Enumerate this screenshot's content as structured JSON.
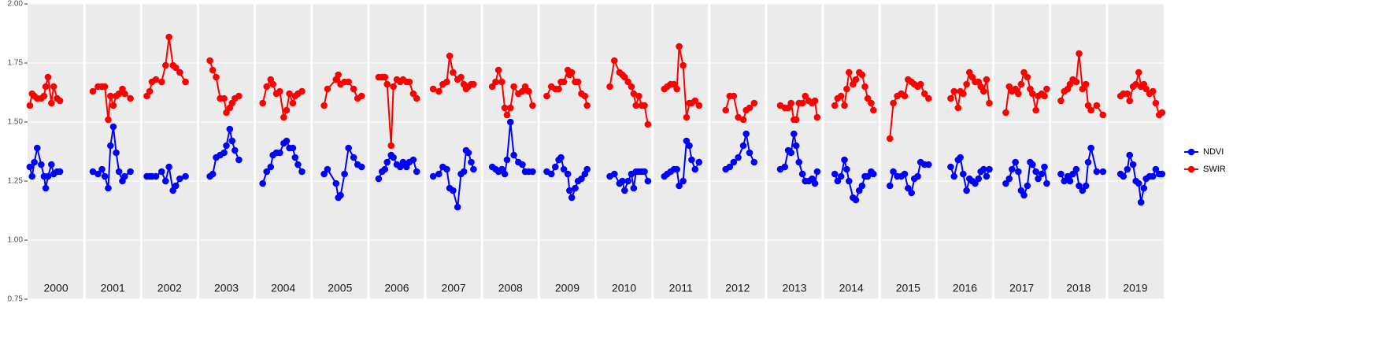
{
  "chart_data": {
    "type": "line",
    "x": [
      2000.04,
      2000.08,
      2000.12,
      2000.17,
      2000.24,
      2000.29,
      2000.32,
      2000.36,
      2000.42,
      2000.46,
      2000.52,
      2000.57,
      2001.15,
      2001.24,
      2001.31,
      2001.36,
      2001.42,
      2001.46,
      2001.51,
      2001.56,
      2001.61,
      2001.67,
      2001.71,
      2001.81,
      2002.1,
      2002.15,
      2002.19,
      2002.26,
      2002.36,
      2002.43,
      2002.49,
      2002.56,
      2002.61,
      2002.68,
      2002.78,
      2003.21,
      2003.26,
      2003.32,
      2003.39,
      2003.46,
      2003.5,
      2003.56,
      2003.6,
      2003.65,
      2003.72,
      2004.14,
      2004.21,
      2004.28,
      2004.32,
      2004.38,
      2004.44,
      2004.51,
      2004.56,
      2004.61,
      2004.67,
      2004.71,
      2004.76,
      2004.83,
      2005.22,
      2005.28,
      2005.43,
      2005.47,
      2005.51,
      2005.58,
      2005.65,
      2005.74,
      2005.81,
      2005.88,
      2006.18,
      2006.24,
      2006.29,
      2006.33,
      2006.4,
      2006.44,
      2006.5,
      2006.56,
      2006.61,
      2006.67,
      2006.72,
      2006.79,
      2006.85,
      2007.14,
      2007.24,
      2007.31,
      2007.38,
      2007.43,
      2007.49,
      2007.57,
      2007.63,
      2007.68,
      2007.72,
      2007.76,
      2007.81,
      2007.85,
      2008.18,
      2008.24,
      2008.29,
      2008.35,
      2008.4,
      2008.44,
      2008.5,
      2008.56,
      2008.64,
      2008.71,
      2008.76,
      2008.82,
      2008.89,
      2009.14,
      2009.22,
      2009.29,
      2009.35,
      2009.39,
      2009.44,
      2009.51,
      2009.54,
      2009.58,
      2009.64,
      2009.69,
      2009.75,
      2009.81,
      2009.85,
      2010.25,
      2010.33,
      2010.42,
      2010.47,
      2010.51,
      2010.57,
      2010.63,
      2010.67,
      2010.71,
      2010.76,
      2010.81,
      2010.86,
      2010.92,
      2011.21,
      2011.26,
      2011.32,
      2011.38,
      2011.43,
      2011.47,
      2011.54,
      2011.6,
      2011.65,
      2011.69,
      2011.75,
      2011.82,
      2012.29,
      2012.36,
      2012.43,
      2012.51,
      2012.6,
      2012.65,
      2012.71,
      2012.79,
      2013.25,
      2013.33,
      2013.39,
      2013.44,
      2013.49,
      2013.53,
      2013.58,
      2013.64,
      2013.69,
      2013.75,
      2013.81,
      2013.86,
      2013.9,
      2014.21,
      2014.26,
      2014.32,
      2014.38,
      2014.42,
      2014.46,
      2014.53,
      2014.58,
      2014.64,
      2014.69,
      2014.74,
      2014.79,
      2014.85,
      2014.89,
      2015.18,
      2015.24,
      2015.31,
      2015.38,
      2015.44,
      2015.5,
      2015.56,
      2015.61,
      2015.67,
      2015.72,
      2015.79,
      2015.86,
      2016.25,
      2016.31,
      2016.38,
      2016.42,
      2016.47,
      2016.53,
      2016.58,
      2016.63,
      2016.68,
      2016.74,
      2016.78,
      2016.83,
      2016.88,
      2016.93,
      2017.22,
      2017.28,
      2017.33,
      2017.39,
      2017.44,
      2017.49,
      2017.54,
      2017.6,
      2017.65,
      2017.69,
      2017.75,
      2017.79,
      2017.85,
      2017.9,
      2017.94,
      2018.19,
      2018.25,
      2018.31,
      2018.35,
      2018.4,
      2018.46,
      2018.51,
      2018.57,
      2018.63,
      2018.67,
      2018.72,
      2018.82,
      2018.93,
      2019.24,
      2019.29,
      2019.36,
      2019.4,
      2019.46,
      2019.51,
      2019.56,
      2019.6,
      2019.65,
      2019.69,
      2019.75,
      2019.81,
      2019.86,
      2019.92,
      2019.97
    ],
    "series": [
      {
        "name": "NDVI",
        "color": "#0000ff",
        "values": [
          1.31,
          1.27,
          1.33,
          1.39,
          1.32,
          1.27,
          1.22,
          1.27,
          1.32,
          1.28,
          1.29,
          1.29,
          1.29,
          1.28,
          1.3,
          1.27,
          1.22,
          1.4,
          1.48,
          1.37,
          1.29,
          1.25,
          1.27,
          1.29,
          1.27,
          1.27,
          1.27,
          1.27,
          1.29,
          1.25,
          1.31,
          1.21,
          1.23,
          1.26,
          1.27,
          1.27,
          1.28,
          1.35,
          1.36,
          1.37,
          1.4,
          1.47,
          1.42,
          1.38,
          1.34,
          1.24,
          1.29,
          1.31,
          1.36,
          1.37,
          1.37,
          1.41,
          1.42,
          1.39,
          1.39,
          1.35,
          1.32,
          1.29,
          1.28,
          1.3,
          1.24,
          1.18,
          1.19,
          1.28,
          1.39,
          1.35,
          1.32,
          1.31,
          1.26,
          1.29,
          1.3,
          1.33,
          1.36,
          1.35,
          1.32,
          1.31,
          1.33,
          1.31,
          1.33,
          1.34,
          1.29,
          1.27,
          1.28,
          1.31,
          1.3,
          1.22,
          1.21,
          1.14,
          1.28,
          1.29,
          1.38,
          1.37,
          1.33,
          1.3,
          1.31,
          1.3,
          1.29,
          1.3,
          1.28,
          1.34,
          1.5,
          1.36,
          1.33,
          1.32,
          1.29,
          1.29,
          1.29,
          1.29,
          1.28,
          1.31,
          1.34,
          1.35,
          1.3,
          1.28,
          1.21,
          1.18,
          1.22,
          1.25,
          1.26,
          1.28,
          1.3,
          1.27,
          1.28,
          1.24,
          1.25,
          1.21,
          1.25,
          1.28,
          1.22,
          1.29,
          1.29,
          1.29,
          1.29,
          1.25,
          1.27,
          1.28,
          1.29,
          1.3,
          1.3,
          1.23,
          1.25,
          1.42,
          1.4,
          1.34,
          1.3,
          1.33,
          1.3,
          1.31,
          1.33,
          1.35,
          1.4,
          1.45,
          1.37,
          1.33,
          1.3,
          1.31,
          1.38,
          1.37,
          1.45,
          1.4,
          1.33,
          1.28,
          1.25,
          1.25,
          1.26,
          1.24,
          1.29,
          1.28,
          1.25,
          1.27,
          1.34,
          1.3,
          1.25,
          1.18,
          1.17,
          1.21,
          1.23,
          1.27,
          1.27,
          1.29,
          1.28,
          1.23,
          1.29,
          1.27,
          1.27,
          1.28,
          1.22,
          1.2,
          1.26,
          1.27,
          1.33,
          1.32,
          1.32,
          1.31,
          1.27,
          1.34,
          1.35,
          1.28,
          1.21,
          1.26,
          1.25,
          1.24,
          1.26,
          1.29,
          1.3,
          1.27,
          1.3,
          1.24,
          1.26,
          1.3,
          1.33,
          1.29,
          1.21,
          1.19,
          1.23,
          1.33,
          1.32,
          1.29,
          1.26,
          1.28,
          1.31,
          1.24,
          1.28,
          1.25,
          1.27,
          1.25,
          1.28,
          1.3,
          1.23,
          1.21,
          1.23,
          1.33,
          1.39,
          1.29,
          1.29,
          1.28,
          1.27,
          1.3,
          1.36,
          1.32,
          1.25,
          1.24,
          1.16,
          1.22,
          1.26,
          1.27,
          1.27,
          1.3,
          1.28,
          1.28
        ]
      },
      {
        "name": "SWIR",
        "color": "#ff0000",
        "values": [
          1.57,
          1.62,
          1.61,
          1.6,
          1.6,
          1.61,
          1.65,
          1.69,
          1.58,
          1.65,
          1.6,
          1.59,
          1.63,
          1.65,
          1.65,
          1.65,
          1.51,
          1.61,
          1.57,
          1.61,
          1.62,
          1.64,
          1.62,
          1.6,
          1.61,
          1.63,
          1.67,
          1.68,
          1.67,
          1.74,
          1.86,
          1.74,
          1.73,
          1.71,
          1.67,
          1.76,
          1.72,
          1.69,
          1.6,
          1.6,
          1.54,
          1.56,
          1.58,
          1.6,
          1.61,
          1.58,
          1.65,
          1.68,
          1.66,
          1.62,
          1.63,
          1.52,
          1.55,
          1.62,
          1.58,
          1.61,
          1.62,
          1.63,
          1.57,
          1.64,
          1.68,
          1.7,
          1.66,
          1.67,
          1.67,
          1.64,
          1.6,
          1.61,
          1.69,
          1.69,
          1.69,
          1.66,
          1.4,
          1.65,
          1.68,
          1.67,
          1.68,
          1.67,
          1.67,
          1.62,
          1.6,
          1.64,
          1.63,
          1.66,
          1.67,
          1.78,
          1.71,
          1.68,
          1.69,
          1.66,
          1.64,
          1.65,
          1.66,
          1.66,
          1.65,
          1.67,
          1.72,
          1.67,
          1.56,
          1.53,
          1.56,
          1.65,
          1.62,
          1.63,
          1.65,
          1.63,
          1.57,
          1.61,
          1.65,
          1.64,
          1.64,
          1.67,
          1.67,
          1.72,
          1.7,
          1.71,
          1.67,
          1.67,
          1.62,
          1.61,
          1.57,
          1.65,
          1.76,
          1.71,
          1.7,
          1.69,
          1.67,
          1.65,
          1.62,
          1.57,
          1.61,
          1.57,
          1.57,
          1.49,
          1.64,
          1.65,
          1.66,
          1.66,
          1.64,
          1.82,
          1.74,
          1.52,
          1.58,
          1.58,
          1.59,
          1.57,
          1.55,
          1.61,
          1.61,
          1.52,
          1.51,
          1.55,
          1.56,
          1.58,
          1.57,
          1.56,
          1.56,
          1.58,
          1.51,
          1.51,
          1.58,
          1.58,
          1.61,
          1.59,
          1.58,
          1.59,
          1.52,
          1.57,
          1.6,
          1.61,
          1.57,
          1.64,
          1.71,
          1.66,
          1.68,
          1.71,
          1.7,
          1.65,
          1.6,
          1.58,
          1.55,
          1.43,
          1.58,
          1.61,
          1.62,
          1.61,
          1.68,
          1.67,
          1.66,
          1.65,
          1.66,
          1.62,
          1.6,
          1.6,
          1.63,
          1.56,
          1.63,
          1.62,
          1.66,
          1.71,
          1.69,
          1.67,
          1.67,
          1.65,
          1.63,
          1.68,
          1.58,
          1.54,
          1.65,
          1.63,
          1.64,
          1.62,
          1.66,
          1.71,
          1.69,
          1.64,
          1.62,
          1.55,
          1.61,
          1.62,
          1.61,
          1.64,
          1.59,
          1.63,
          1.64,
          1.66,
          1.68,
          1.67,
          1.79,
          1.64,
          1.66,
          1.57,
          1.55,
          1.57,
          1.53,
          1.61,
          1.62,
          1.62,
          1.59,
          1.65,
          1.66,
          1.71,
          1.65,
          1.66,
          1.64,
          1.62,
          1.63,
          1.58,
          1.53,
          1.54
        ]
      }
    ],
    "xlim": [
      2000,
      2020
    ],
    "xticks": [
      {
        "value": 2000.5,
        "label": "2000"
      },
      {
        "value": 2001.5,
        "label": "2001"
      },
      {
        "value": 2002.5,
        "label": "2002"
      },
      {
        "value": 2003.5,
        "label": "2003"
      },
      {
        "value": 2004.5,
        "label": "2004"
      },
      {
        "value": 2005.5,
        "label": "2005"
      },
      {
        "value": 2006.5,
        "label": "2006"
      },
      {
        "value": 2007.5,
        "label": "2007"
      },
      {
        "value": 2008.5,
        "label": "2008"
      },
      {
        "value": 2009.5,
        "label": "2009"
      },
      {
        "value": 2010.5,
        "label": "2010"
      },
      {
        "value": 2011.5,
        "label": "2011"
      },
      {
        "value": 2012.5,
        "label": "2012"
      },
      {
        "value": 2013.5,
        "label": "2013"
      },
      {
        "value": 2014.5,
        "label": "2014"
      },
      {
        "value": 2015.5,
        "label": "2015"
      },
      {
        "value": 2016.5,
        "label": "2016"
      },
      {
        "value": 2017.5,
        "label": "2017"
      },
      {
        "value": 2018.5,
        "label": "2018"
      },
      {
        "value": 2019.5,
        "label": "2019"
      }
    ],
    "ylim": [
      0.75,
      2.0
    ],
    "yticks": [
      {
        "value": 0.75,
        "label": "0.75"
      },
      {
        "value": 1.0,
        "label": "1.00"
      },
      {
        "value": 1.25,
        "label": "1.25"
      },
      {
        "value": 1.5,
        "label": "1.50"
      },
      {
        "value": 1.75,
        "label": "1.75"
      },
      {
        "value": 2.0,
        "label": "2.00"
      }
    ],
    "grid": true,
    "legend": "right"
  }
}
